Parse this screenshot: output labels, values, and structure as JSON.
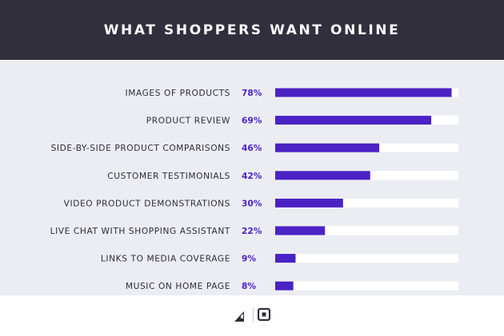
{
  "header": {
    "title": "WHAT SHOPPERS WANT ONLINE"
  },
  "colors": {
    "header_bg": "#322f3d",
    "panel_bg": "#ecedf3",
    "bar": "#4b22c4",
    "track": "#ffffff",
    "label": "#2d2b3a",
    "value": "#4b22c4"
  },
  "icons": [
    "bigcommerce-logo-icon",
    "square-logo-icon"
  ],
  "chart_data": {
    "type": "bar",
    "orientation": "horizontal",
    "title": "WHAT SHOPPERS WANT ONLINE",
    "xlim": [
      0,
      100
    ],
    "grid": false,
    "categories": [
      "IMAGES OF PRODUCTS",
      "PRODUCT REVIEW",
      "SIDE-BY-SIDE PRODUCT COMPARISONS",
      "CUSTOMER TESTIMONIALS",
      "VIDEO PRODUCT DEMONSTRATIONS",
      "LIVE CHAT WITH SHOPPING ASSISTANT",
      "LINKS TO MEDIA COVERAGE",
      "MUSIC ON HOME PAGE"
    ],
    "values": [
      78,
      69,
      46,
      42,
      30,
      22,
      9,
      8
    ],
    "value_labels": [
      "78%",
      "69%",
      "46%",
      "42%",
      "30%",
      "22%",
      "9%",
      "8%"
    ]
  }
}
